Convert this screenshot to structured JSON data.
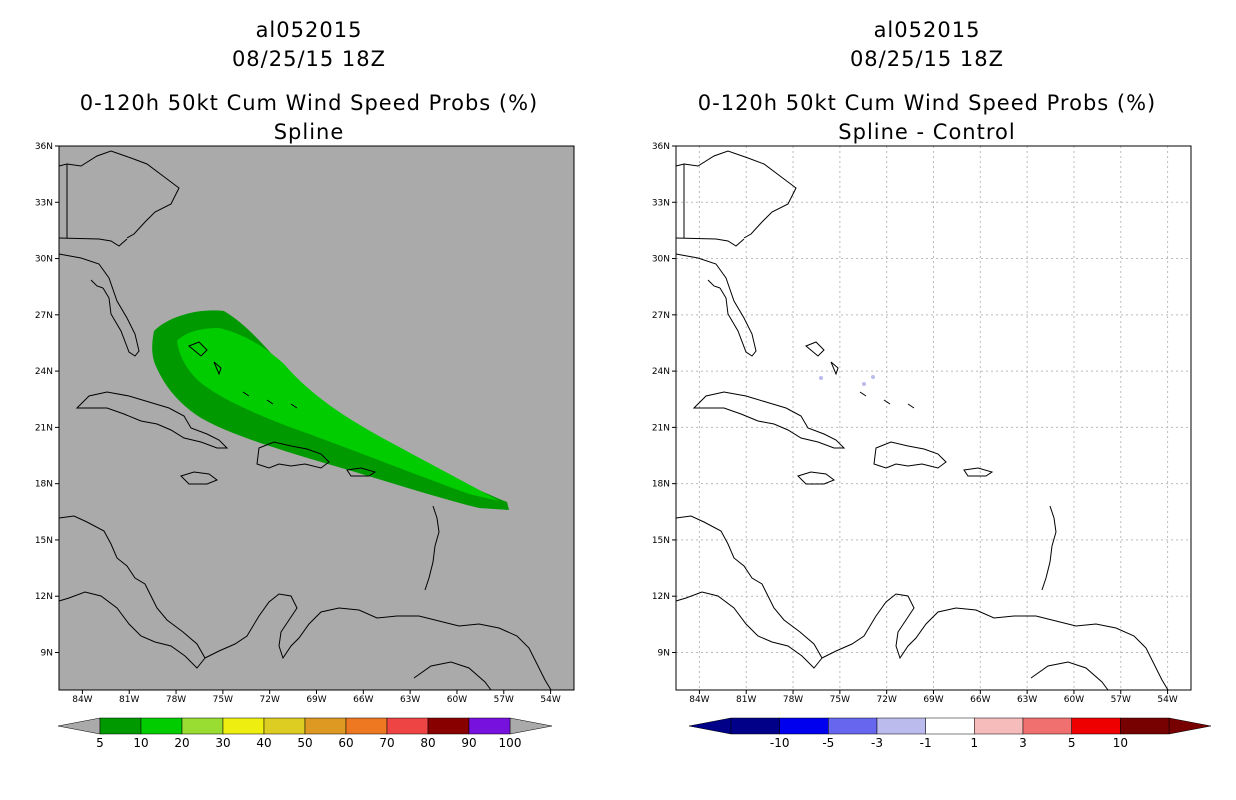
{
  "left_panel": {
    "storm_id": "al052015",
    "datetime": "08/25/15 18Z",
    "product": "0-120h 50kt Cum Wind Speed Probs (%)",
    "subtitle": "Spline",
    "background_color": "#aaaaaa",
    "colorbar": {
      "colors": [
        "#009900",
        "#00cc00",
        "#99dd33",
        "#eeee11",
        "#ddcc22",
        "#dd9922",
        "#ee7722",
        "#ee4444",
        "#880000",
        "#7711dd"
      ],
      "labels": [
        "5",
        "10",
        "20",
        "30",
        "40",
        "50",
        "60",
        "70",
        "80",
        "90",
        "100"
      ],
      "end_color": "#aaaaaa"
    },
    "prob_fields": {
      "5_to_10_color": "#009900",
      "10_to_20_color": "#00cc00"
    }
  },
  "right_panel": {
    "storm_id": "al052015",
    "datetime": "08/25/15 18Z",
    "product": "0-120h 50kt Cum Wind Speed Probs (%)",
    "subtitle": "Spline - Control",
    "background_color": "#ffffff",
    "colorbar": {
      "colors": [
        "#000088",
        "#0000ee",
        "#6666ee",
        "#bbbbee",
        "#ffffff",
        "#f6bbbb",
        "#f07070",
        "#ee0000",
        "#770000"
      ],
      "labels": [
        "-10",
        "-5",
        "-3",
        "-1",
        "1",
        "3",
        "5",
        "10"
      ]
    }
  },
  "map": {
    "lat_labels": [
      "36N",
      "33N",
      "30N",
      "27N",
      "24N",
      "21N",
      "18N",
      "15N",
      "12N",
      "9N"
    ],
    "lon_labels": [
      "84W",
      "81W",
      "78W",
      "75W",
      "72W",
      "69W",
      "66W",
      "63W",
      "60W",
      "57W",
      "54W"
    ]
  }
}
